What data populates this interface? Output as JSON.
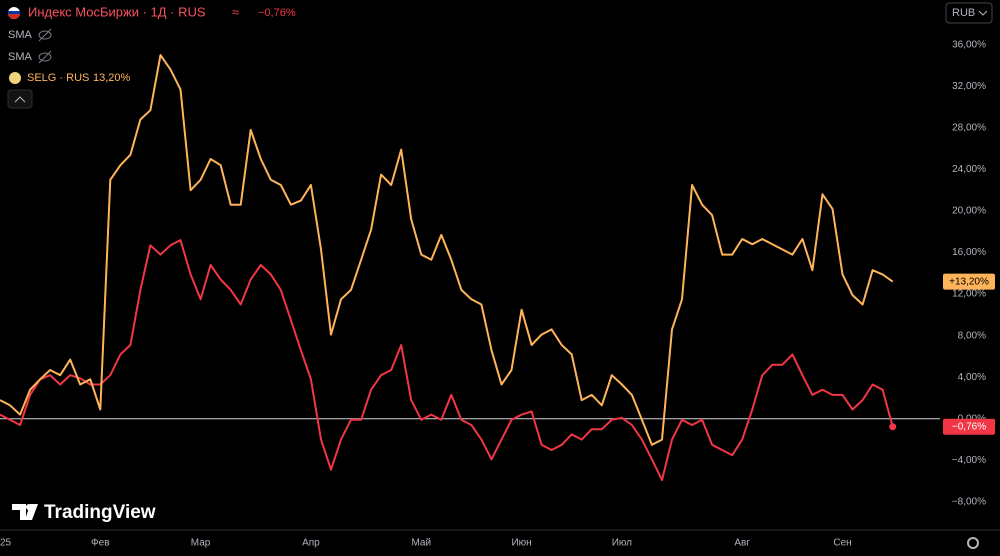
{
  "chart_data": {
    "type": "line",
    "legend_header": "Индекс МосБиржи · 1Д · RUS",
    "legend_change": "−0,76%",
    "indicators": [
      "SMA",
      "SMA"
    ],
    "currency": "RUB",
    "brand": "TradingView",
    "categories": [
      "25",
      null,
      null,
      null,
      null,
      null,
      null,
      null,
      null,
      null,
      "Фев",
      null,
      null,
      null,
      null,
      null,
      null,
      null,
      null,
      null,
      "Мар",
      null,
      null,
      null,
      null,
      null,
      null,
      null,
      null,
      null,
      null,
      "Апр",
      null,
      null,
      null,
      null,
      null,
      null,
      null,
      null,
      null,
      null,
      "Май",
      null,
      null,
      null,
      null,
      null,
      null,
      null,
      null,
      null,
      "Июн",
      null,
      null,
      null,
      null,
      null,
      null,
      null,
      null,
      null,
      "Июл",
      null,
      null,
      null,
      null,
      null,
      null,
      null,
      null,
      null,
      null,
      null,
      "Авг",
      null,
      null,
      null,
      null,
      null,
      null,
      null,
      null,
      null,
      "Сен",
      null,
      null,
      null,
      null,
      null
    ],
    "series": [
      {
        "name": "SELG · RUS",
        "change_label": "13,20%",
        "last_value_label": "+13,20%",
        "color": "#ffb45a",
        "values": [
          1.8,
          1.3,
          0.4,
          2.8,
          3.8,
          4.7,
          4.2,
          5.7,
          3.3,
          3.8,
          0.9,
          23,
          24.4,
          25.4,
          28.8,
          29.7,
          35,
          33.6,
          31.7,
          22,
          23,
          25,
          24.4,
          20.6,
          20.6,
          27.8,
          25,
          23,
          22.5,
          20.6,
          21,
          22.5,
          16.3,
          8.1,
          11.5,
          12.4,
          15.3,
          18.2,
          23.5,
          22.5,
          25.9,
          19.2,
          15.8,
          15.3,
          17.7,
          15.3,
          12.4,
          11.5,
          11,
          6.6,
          3.3,
          4.7,
          10.5,
          7.1,
          8.1,
          8.6,
          7.1,
          6.2,
          1.8,
          2.3,
          1.3,
          4.2,
          3.3,
          2.3,
          -0.1,
          -2.5,
          -2,
          8.6,
          11.5,
          22.5,
          20.6,
          19.6,
          15.8,
          15.8,
          17.3,
          16.8,
          17.3,
          16.8,
          16.3,
          15.8,
          17.3,
          14.3,
          21.6,
          20.2,
          13.9,
          11.9,
          11,
          14.3,
          13.9,
          13.2
        ]
      },
      {
        "name": "Индекс МосБиржи",
        "change_label": "−0,76%",
        "last_value_label": "−0,76%",
        "color": "#f23645",
        "values": [
          0.4,
          -0.1,
          -0.6,
          2.3,
          3.8,
          4.2,
          3.3,
          4.2,
          3.9,
          3.3,
          3.3,
          4.2,
          6.2,
          7.1,
          12.4,
          16.7,
          15.8,
          16.7,
          17.2,
          13.9,
          11.5,
          14.8,
          13.4,
          12.4,
          11,
          13.4,
          14.8,
          13.9,
          12.4,
          9.5,
          6.6,
          3.8,
          -2,
          -4.9,
          -2,
          -0.1,
          -0.1,
          2.8,
          4.2,
          4.7,
          7.1,
          1.8,
          -0.1,
          0.4,
          -0.1,
          2.3,
          -0.1,
          -0.6,
          -2,
          -3.9,
          -2,
          -0.1,
          0.4,
          0.7,
          -2.5,
          -3,
          -2.5,
          -1.5,
          -2,
          -1,
          -1,
          -0.1,
          0.1,
          -0.6,
          -2,
          -3.9,
          -5.9,
          -2,
          -0.1,
          -0.6,
          -0.1,
          -2.5,
          -3,
          -3.5,
          -2,
          0.9,
          4.2,
          5.2,
          5.2,
          6.2,
          4.2,
          2.3,
          2.8,
          2.3,
          2.3,
          0.9,
          1.8,
          3.3,
          2.8,
          -0.76
        ]
      }
    ],
    "ylim": [
      -10.7,
      40.3
    ],
    "yticks": [
      {
        "value": -8,
        "label": "−8,00%"
      },
      {
        "value": -4,
        "label": "−4,00%"
      },
      {
        "value": 0,
        "label": "0,00%"
      },
      {
        "value": 4,
        "label": "4,00%"
      },
      {
        "value": 8,
        "label": "8,00%"
      },
      {
        "value": 12,
        "label": "12,00%"
      },
      {
        "value": 16,
        "label": "16,00%"
      },
      {
        "value": 20,
        "label": "20,00%"
      },
      {
        "value": 24,
        "label": "24,00%"
      },
      {
        "value": 28,
        "label": "28,00%"
      },
      {
        "value": 32,
        "label": "32,00%"
      },
      {
        "value": 36,
        "label": "36,00%"
      }
    ],
    "grid": false
  }
}
